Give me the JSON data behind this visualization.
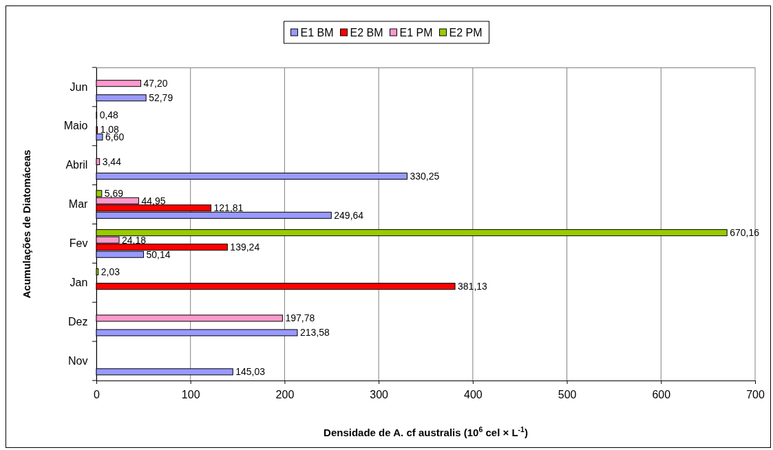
{
  "chart_data": {
    "type": "bar",
    "orientation": "horizontal",
    "xlabel": "Densidade de A. cf australis (10$^{6}$ cel × L$^{-1}$)",
    "ylabel": "Acumulações de Diatomáceas",
    "categories": [
      "Jun",
      "Maio",
      "Abril",
      "Mar",
      "Fev",
      "Jan",
      "Dez",
      "Nov"
    ],
    "series": [
      {
        "name": "E1 BM",
        "color": "#9999ff",
        "values": [
          52.79,
          6.6,
          330.25,
          249.64,
          50.14,
          null,
          213.58,
          145.03
        ],
        "value_labels": [
          "52,79",
          "6,60",
          "330,25",
          "249,64",
          "50,14",
          null,
          "213,58",
          "145,03"
        ]
      },
      {
        "name": "E2 BM",
        "color": "#ff0000",
        "values": [
          null,
          1.08,
          null,
          121.81,
          139.24,
          381.13,
          null,
          null
        ],
        "value_labels": [
          null,
          "1,08",
          null,
          "121,81",
          "139,24",
          "381,13",
          null,
          null
        ]
      },
      {
        "name": "E1 PM",
        "color": "#ff99cc",
        "values": [
          47.2,
          null,
          3.44,
          44.95,
          24.18,
          null,
          197.78,
          null
        ],
        "value_labels": [
          "47,20",
          null,
          "3,44",
          "44,95",
          "24,18",
          null,
          "197,78",
          null
        ]
      },
      {
        "name": "E2 PM",
        "color": "#99cc00",
        "values": [
          null,
          0.48,
          null,
          5.69,
          670.16,
          2.03,
          null,
          null
        ],
        "value_labels": [
          null,
          "0,48",
          null,
          "5,69",
          "670,16",
          "2,03",
          null,
          null
        ]
      }
    ],
    "xlim": [
      0,
      700
    ],
    "xticks": [
      0,
      100,
      200,
      300,
      400,
      500,
      600,
      700
    ],
    "grid": "x",
    "legend": "top"
  }
}
